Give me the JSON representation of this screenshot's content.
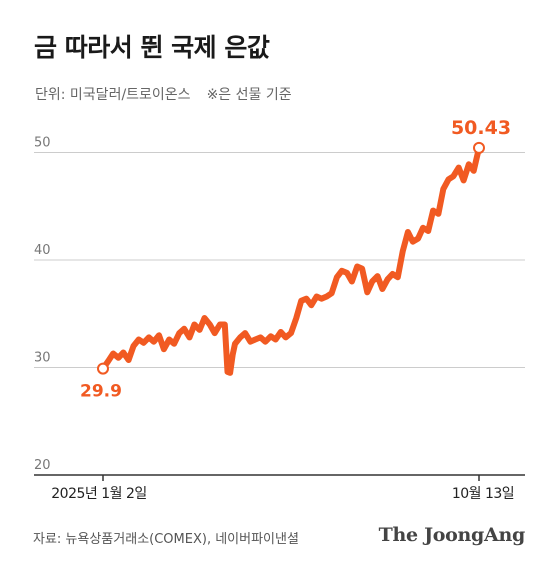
{
  "title": "금 따라서 뛴 국제 은값",
  "subtitle": "단위: 미국달러/트로이온스",
  "note": "※은 선물 기준",
  "source": "자료: 뉴욕상품거래소(COMEX), 네이버파이낸셜",
  "brand": "The JoongAng",
  "colors": {
    "line": "#f15a22",
    "grid": "#cccccc",
    "axis": "#333333"
  },
  "chart_data": {
    "type": "line",
    "ylim": [
      20,
      52
    ],
    "yticks": [
      20,
      30,
      40,
      50
    ],
    "grid": true,
    "x_labels": [
      {
        "label": "2025년 1월 2일",
        "t": 0
      },
      {
        "label": "10월 13일",
        "t": 1
      }
    ],
    "annotations": [
      {
        "label": "29.9",
        "t": 0,
        "value": 29.9
      },
      {
        "label": "50.43",
        "t": 1,
        "value": 50.43
      }
    ],
    "series": [
      {
        "t": [
          0,
          0.014,
          0.027,
          0.041,
          0.054,
          0.068,
          0.081,
          0.095,
          0.108,
          0.122,
          0.135,
          0.149,
          0.162,
          0.176,
          0.189,
          0.203,
          0.216,
          0.23,
          0.243,
          0.257,
          0.27,
          0.284,
          0.297,
          0.311,
          0.324,
          0.331,
          0.338,
          0.345,
          0.351,
          0.365,
          0.378,
          0.392,
          0.405,
          0.419,
          0.432,
          0.446,
          0.459,
          0.473,
          0.486,
          0.5,
          0.514,
          0.527,
          0.541,
          0.554,
          0.568,
          0.581,
          0.595,
          0.608,
          0.622,
          0.635,
          0.649,
          0.662,
          0.676,
          0.689,
          0.703,
          0.716,
          0.73,
          0.743,
          0.757,
          0.77,
          0.784,
          0.797,
          0.811,
          0.824,
          0.838,
          0.851,
          0.865,
          0.878,
          0.892,
          0.905,
          0.919,
          0.932,
          0.946,
          0.959,
          0.973,
          0.986,
          1
        ],
        "values": [
          29.9,
          30.6,
          31.3,
          30.9,
          31.4,
          30.7,
          32.0,
          32.6,
          32.3,
          32.8,
          32.4,
          33.0,
          31.7,
          32.6,
          32.2,
          33.2,
          33.6,
          32.8,
          34.0,
          33.5,
          34.6,
          34.0,
          33.2,
          34.0,
          34.0,
          29.6,
          29.5,
          31.2,
          32.2,
          32.8,
          33.2,
          32.4,
          32.6,
          32.8,
          32.4,
          32.9,
          32.6,
          33.3,
          32.8,
          33.2,
          34.6,
          36.2,
          36.4,
          35.8,
          36.6,
          36.4,
          36.6,
          36.9,
          38.4,
          39.0,
          38.8,
          38.0,
          39.4,
          39.2,
          37.0,
          38.0,
          38.5,
          37.3,
          38.2,
          38.7,
          38.4,
          40.8,
          42.6,
          41.7,
          42.0,
          43.0,
          42.7,
          44.6,
          44.3,
          46.6,
          47.5,
          47.8,
          48.6,
          47.4,
          48.9,
          48.3,
          50.43
        ]
      }
    ]
  }
}
